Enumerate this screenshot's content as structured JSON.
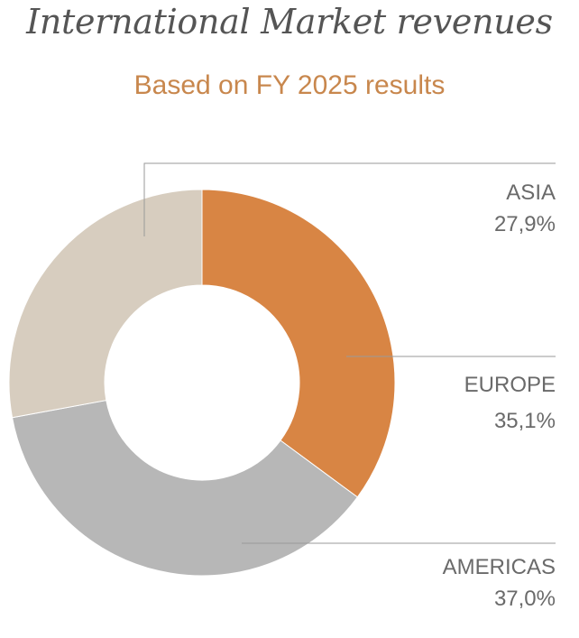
{
  "chart_data": {
    "type": "pie",
    "title": "International Market revenues",
    "subtitle": "Based on FY 2025 results",
    "donut": true,
    "slices": [
      {
        "name": "EUROPE",
        "value": 35.1,
        "value_label": "35,1%",
        "color": "#d88544"
      },
      {
        "name": "AMERICAS",
        "value": 37.0,
        "value_label": "37,0%",
        "color": "#b7b7b7"
      },
      {
        "name": "ASIA",
        "value": 27.9,
        "value_label": "27,9%",
        "color": "#d7cdbf"
      }
    ]
  },
  "colors": {
    "subtitle": "#c8874d",
    "leader": "#9a9a9a",
    "label": "#6a6a6a"
  }
}
